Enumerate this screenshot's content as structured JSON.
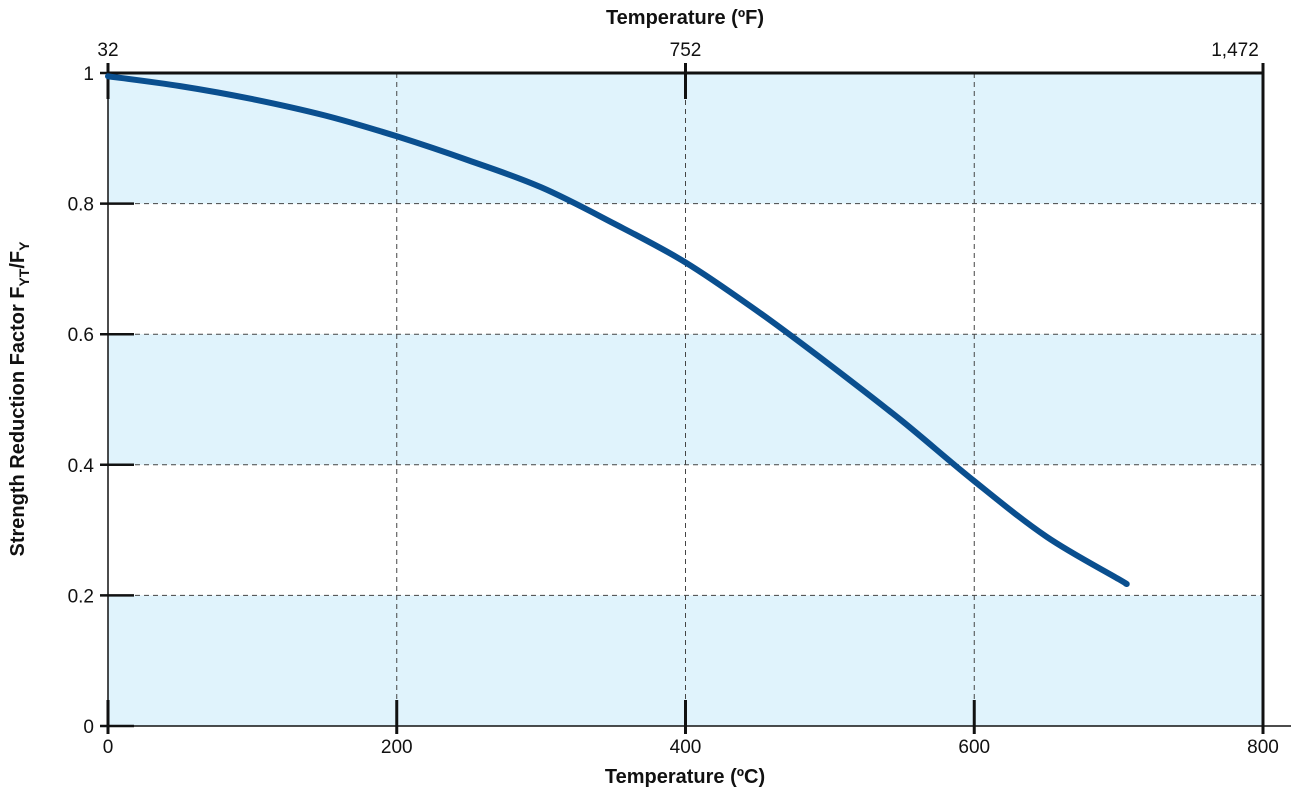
{
  "chart_data": {
    "type": "line",
    "title": "",
    "xlabel": "Temperature (ºC)",
    "x2label": "Temperature (ºF)",
    "ylabel_main": "Strength Reduction Factor F",
    "ylabel_sub1": "YT",
    "ylabel_mid": "/F",
    "ylabel_sub2": "Y",
    "xlim": [
      0,
      800
    ],
    "ylim": [
      0,
      1
    ],
    "x_ticks": [
      {
        "value": 0,
        "label": "0"
      },
      {
        "value": 200,
        "label": "200"
      },
      {
        "value": 400,
        "label": "400"
      },
      {
        "value": 600,
        "label": "600"
      },
      {
        "value": 800,
        "label": "800"
      }
    ],
    "x2_ticks": [
      {
        "value": 0,
        "label": "32"
      },
      {
        "value": 400,
        "label": "752"
      },
      {
        "value": 800,
        "label": "1,472"
      }
    ],
    "y_ticks": [
      {
        "value": 0,
        "label": "0"
      },
      {
        "value": 0.2,
        "label": "0.2"
      },
      {
        "value": 0.4,
        "label": "0.4"
      },
      {
        "value": 0.6,
        "label": "0.6"
      },
      {
        "value": 0.8,
        "label": "0.8"
      },
      {
        "value": 1,
        "label": "1"
      }
    ],
    "grid": true,
    "band_color": "#e0f3fc",
    "line_color": "#0a4f8f",
    "series": [
      {
        "x": [
          0,
          50,
          100,
          150,
          200,
          250,
          300,
          350,
          400,
          450,
          500,
          550,
          600,
          650,
          700,
          705
        ],
        "y": [
          0.995,
          0.98,
          0.96,
          0.935,
          0.903,
          0.866,
          0.825,
          0.77,
          0.71,
          0.635,
          0.553,
          0.467,
          0.375,
          0.29,
          0.225,
          0.218
        ]
      }
    ]
  }
}
